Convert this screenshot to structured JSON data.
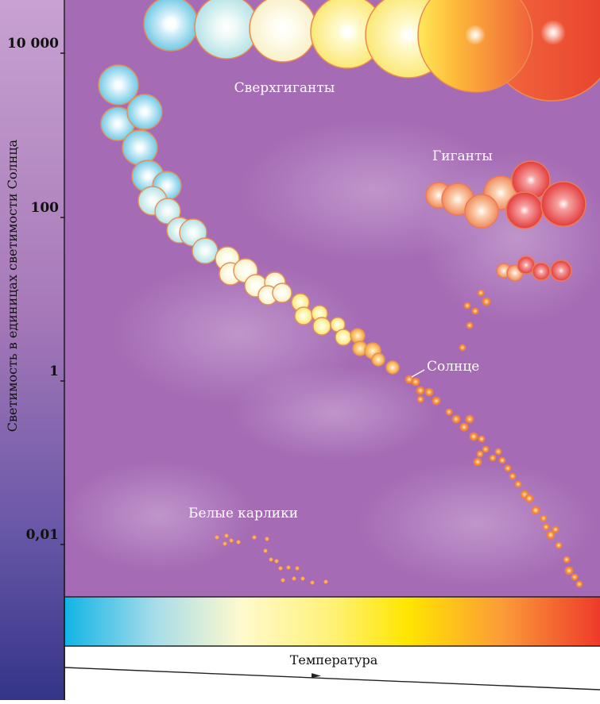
{
  "diagram": {
    "y_axis_title": "Светимость в единицах светимости Солнца",
    "y_ticks": [
      "10 000",
      "100",
      "1",
      "0,01"
    ],
    "x_axis_title": "Температура",
    "labels": {
      "supergiants": "Сверхгиганты",
      "giants": "Гиганты",
      "sun": "Солнце",
      "white_dwarfs": "Белые карлики"
    },
    "colors": {
      "plot_background": "#a66cb4",
      "axis_band_top": "#c39acc",
      "axis_band_bottom": "#3d3a8c",
      "spectrum": [
        "#12b4e6",
        "#a8dde9",
        "#fffacd",
        "#fff176",
        "#ffe600",
        "#fb9a38",
        "#ee3a2a"
      ]
    }
  }
}
